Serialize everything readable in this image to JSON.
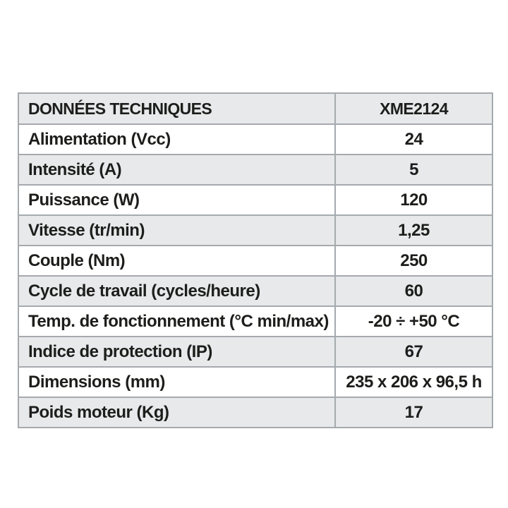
{
  "page": {
    "background_color": "#ffffff"
  },
  "table": {
    "colors": {
      "header_background": "#e8e9eb",
      "stripe_background": "#e8e9eb",
      "row_background": "#ffffff",
      "border": "#a5aaae",
      "text": "#1d1d1b"
    },
    "header": {
      "label": "DONNÉES TECHNIQUES",
      "value": "XME2124"
    },
    "rows": [
      {
        "label": "Alimentation (Vcc)",
        "value": "24"
      },
      {
        "label": "Intensité (A)",
        "value": "5"
      },
      {
        "label": "Puissance (W)",
        "value": "120"
      },
      {
        "label": "Vitesse (tr/min)",
        "value": "1,25"
      },
      {
        "label": "Couple (Nm)",
        "value": "250"
      },
      {
        "label": "Cycle de travail (cycles/heure)",
        "value": "60"
      },
      {
        "label": "Temp. de fonctionnement (°C min/max)",
        "value": "-20 ÷ +50 °C"
      },
      {
        "label": "Indice de protection (IP)",
        "value": "67"
      },
      {
        "label": "Dimensions (mm)",
        "value": "235 x 206 x 96,5 h"
      },
      {
        "label": "Poids moteur (Kg)",
        "value": "17"
      }
    ]
  }
}
